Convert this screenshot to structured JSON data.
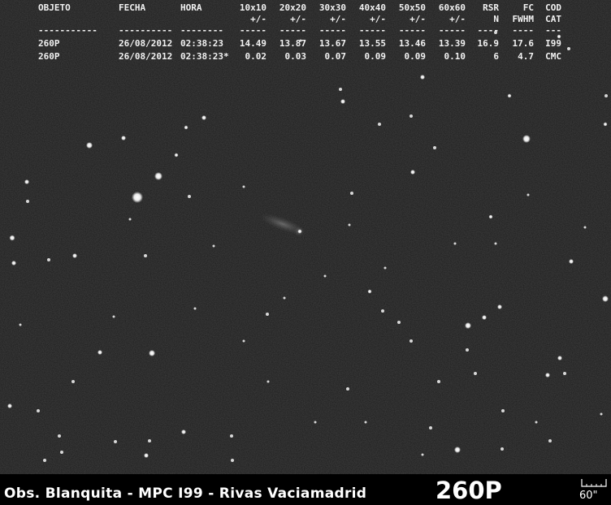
{
  "table": {
    "headers_row1": [
      "OBJETO",
      "FECHA",
      "HORA",
      "10x10",
      "20x20",
      "30x30",
      "40x40",
      "50x50",
      "60x60",
      "RSR",
      "FC",
      "COD"
    ],
    "headers_row2": [
      "",
      "",
      "",
      "+/-",
      "+/-",
      "+/-",
      "+/-",
      "+/-",
      "+/-",
      "N",
      "FWHM",
      "CAT"
    ],
    "separators": [
      "-----------",
      "----------",
      "--------",
      "-----",
      "-----",
      "-----",
      "-----",
      "-----",
      "-----",
      "----",
      "----",
      "---"
    ],
    "rows": [
      [
        "260P",
        "26/08/2012",
        "02:38:23",
        "14.49",
        "13.87",
        "13.67",
        "13.55",
        "13.46",
        "13.39",
        "16.9",
        "17.6",
        "I99"
      ],
      [
        "260P",
        "26/08/2012",
        "02:38:23*",
        "0.02",
        "0.03",
        "0.07",
        "0.09",
        "0.09",
        "0.10",
        "6",
        "4.7",
        "CMC"
      ]
    ]
  },
  "caption": {
    "observatory": "Obs. Blanquita - MPC I99 - Rivas Vaciamadrid",
    "object": "260P",
    "scale": "60\""
  },
  "icons": {
    "scale_bar": "scale-bar-icon"
  },
  "colors": {
    "sky": "#1c1c1c",
    "star": "#ffffff",
    "text": "#f2f2f2",
    "caption_bg": "#000000"
  }
}
